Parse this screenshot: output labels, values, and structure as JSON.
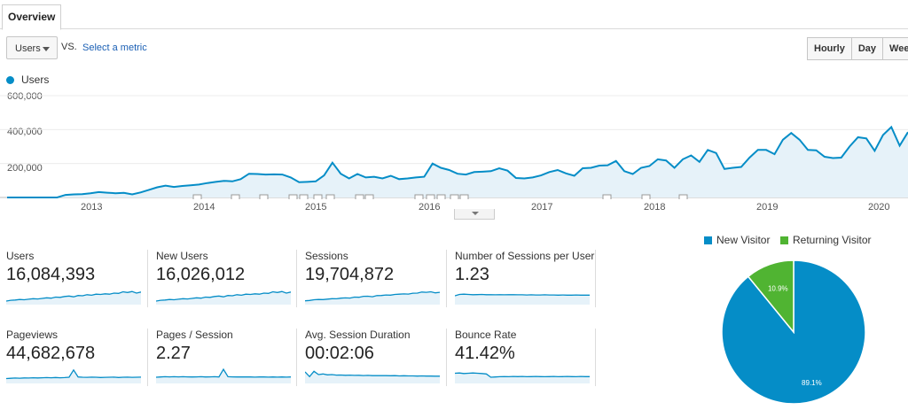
{
  "tab": {
    "label": "Overview"
  },
  "metric": {
    "selected": "Users",
    "vs": "VS.",
    "select_label": "Select a metric"
  },
  "time_buttons": [
    "Hourly",
    "Day",
    "Week"
  ],
  "legend": {
    "label": "Users",
    "color": "#058dc7"
  },
  "chart_data": [
    {
      "type": "area",
      "series": [
        {
          "name": "Users",
          "color": "#058dc7"
        }
      ],
      "ylim": [
        0,
        600000
      ],
      "yticks": [
        "600,000",
        "400,000",
        "200,000"
      ],
      "xticks": [
        "2013",
        "2014",
        "2015",
        "2016",
        "2017",
        "2018",
        "2019",
        "2020"
      ],
      "x_start": "2012-05",
      "x_end": "2020-05",
      "values": [
        0,
        0,
        0,
        0,
        0,
        0,
        0,
        15000,
        18000,
        20000,
        25000,
        32000,
        28000,
        25000,
        27000,
        18000,
        30000,
        45000,
        60000,
        70000,
        62000,
        68000,
        72000,
        76000,
        85000,
        92000,
        98000,
        95000,
        108000,
        140000,
        138000,
        135000,
        136000,
        135000,
        118000,
        90000,
        92000,
        95000,
        130000,
        205000,
        140000,
        112000,
        138000,
        118000,
        122000,
        112000,
        128000,
        108000,
        112000,
        118000,
        122000,
        200000,
        175000,
        162000,
        140000,
        135000,
        150000,
        152000,
        155000,
        172000,
        158000,
        115000,
        112000,
        118000,
        130000,
        150000,
        162000,
        142000,
        128000,
        172000,
        175000,
        188000,
        190000,
        215000,
        155000,
        138000,
        175000,
        185000,
        225000,
        218000,
        175000,
        225000,
        248000,
        210000,
        280000,
        262000,
        168000,
        175000,
        180000,
        235000,
        280000,
        280000,
        255000,
        340000,
        380000,
        340000,
        280000,
        278000,
        240000,
        232000,
        235000,
        300000,
        355000,
        348000,
        275000,
        368000,
        415000,
        305000,
        385000
      ]
    },
    {
      "type": "pie",
      "categories": [
        "New Visitor",
        "Returning Visitor"
      ],
      "values": [
        89.1,
        10.9
      ],
      "labels": [
        "89.1%",
        "10.9%"
      ],
      "colors": [
        "#058dc7",
        "#50b432"
      ]
    }
  ],
  "scorecards": [
    {
      "label": "Users",
      "value": "16,084,393",
      "spark": [
        20,
        26,
        28,
        32,
        30,
        34,
        38,
        36,
        40,
        45,
        42,
        50,
        48,
        55,
        58,
        52,
        62,
        60,
        68,
        64,
        72,
        70,
        75,
        72,
        80,
        78,
        90,
        85,
        92,
        80,
        88
      ]
    },
    {
      "label": "New Users",
      "value": "16,026,012",
      "spark": [
        20,
        26,
        28,
        32,
        30,
        34,
        38,
        36,
        40,
        45,
        42,
        50,
        48,
        55,
        58,
        52,
        62,
        60,
        68,
        64,
        72,
        70,
        75,
        72,
        80,
        78,
        90,
        85,
        92,
        80,
        88
      ]
    },
    {
      "label": "Sessions",
      "value": "19,704,872",
      "spark": [
        22,
        25,
        30,
        32,
        31,
        35,
        38,
        37,
        42,
        44,
        43,
        50,
        49,
        56,
        57,
        53,
        61,
        62,
        66,
        65,
        70,
        72,
        74,
        73,
        79,
        80,
        88,
        86,
        90,
        82,
        86
      ]
    },
    {
      "label": "Number of Sessions per User",
      "value": "1.23",
      "spark": [
        60,
        70,
        72,
        70,
        68,
        69,
        70,
        68,
        68,
        67,
        68,
        67,
        68,
        68,
        67,
        67,
        66,
        67,
        66,
        66,
        67,
        66,
        66,
        65,
        66,
        65,
        65,
        66,
        65,
        65,
        65
      ]
    },
    {
      "label": "Pageviews",
      "value": "44,682,678",
      "spark": [
        30,
        32,
        34,
        33,
        35,
        34,
        36,
        35,
        36,
        37,
        36,
        38,
        36,
        37,
        40,
        95,
        42,
        40,
        39,
        41,
        40,
        38,
        39,
        40,
        41,
        38,
        40,
        41,
        39,
        40,
        41
      ]
    },
    {
      "label": "Pages / Session",
      "value": "2.27",
      "spark": [
        40,
        42,
        44,
        43,
        44,
        43,
        44,
        43,
        42,
        43,
        44,
        42,
        43,
        44,
        42,
        100,
        44,
        43,
        42,
        43,
        42,
        42,
        41,
        42,
        42,
        41,
        42,
        41,
        42,
        41,
        42
      ]
    },
    {
      "label": "Avg. Session Duration",
      "value": "00:02:06",
      "spark": [
        80,
        45,
        85,
        60,
        65,
        58,
        60,
        56,
        57,
        55,
        56,
        54,
        55,
        53,
        54,
        52,
        53,
        52,
        52,
        51,
        52,
        50,
        51,
        50,
        50,
        49,
        50,
        49,
        49,
        48,
        48
      ]
    },
    {
      "label": "Bounce Rate",
      "value": "41.42%",
      "spark": [
        70,
        72,
        68,
        70,
        72,
        70,
        68,
        65,
        40,
        42,
        44,
        45,
        44,
        46,
        45,
        46,
        44,
        45,
        46,
        45,
        44,
        45,
        46,
        44,
        45,
        46,
        45,
        44,
        46,
        45,
        45
      ]
    }
  ]
}
